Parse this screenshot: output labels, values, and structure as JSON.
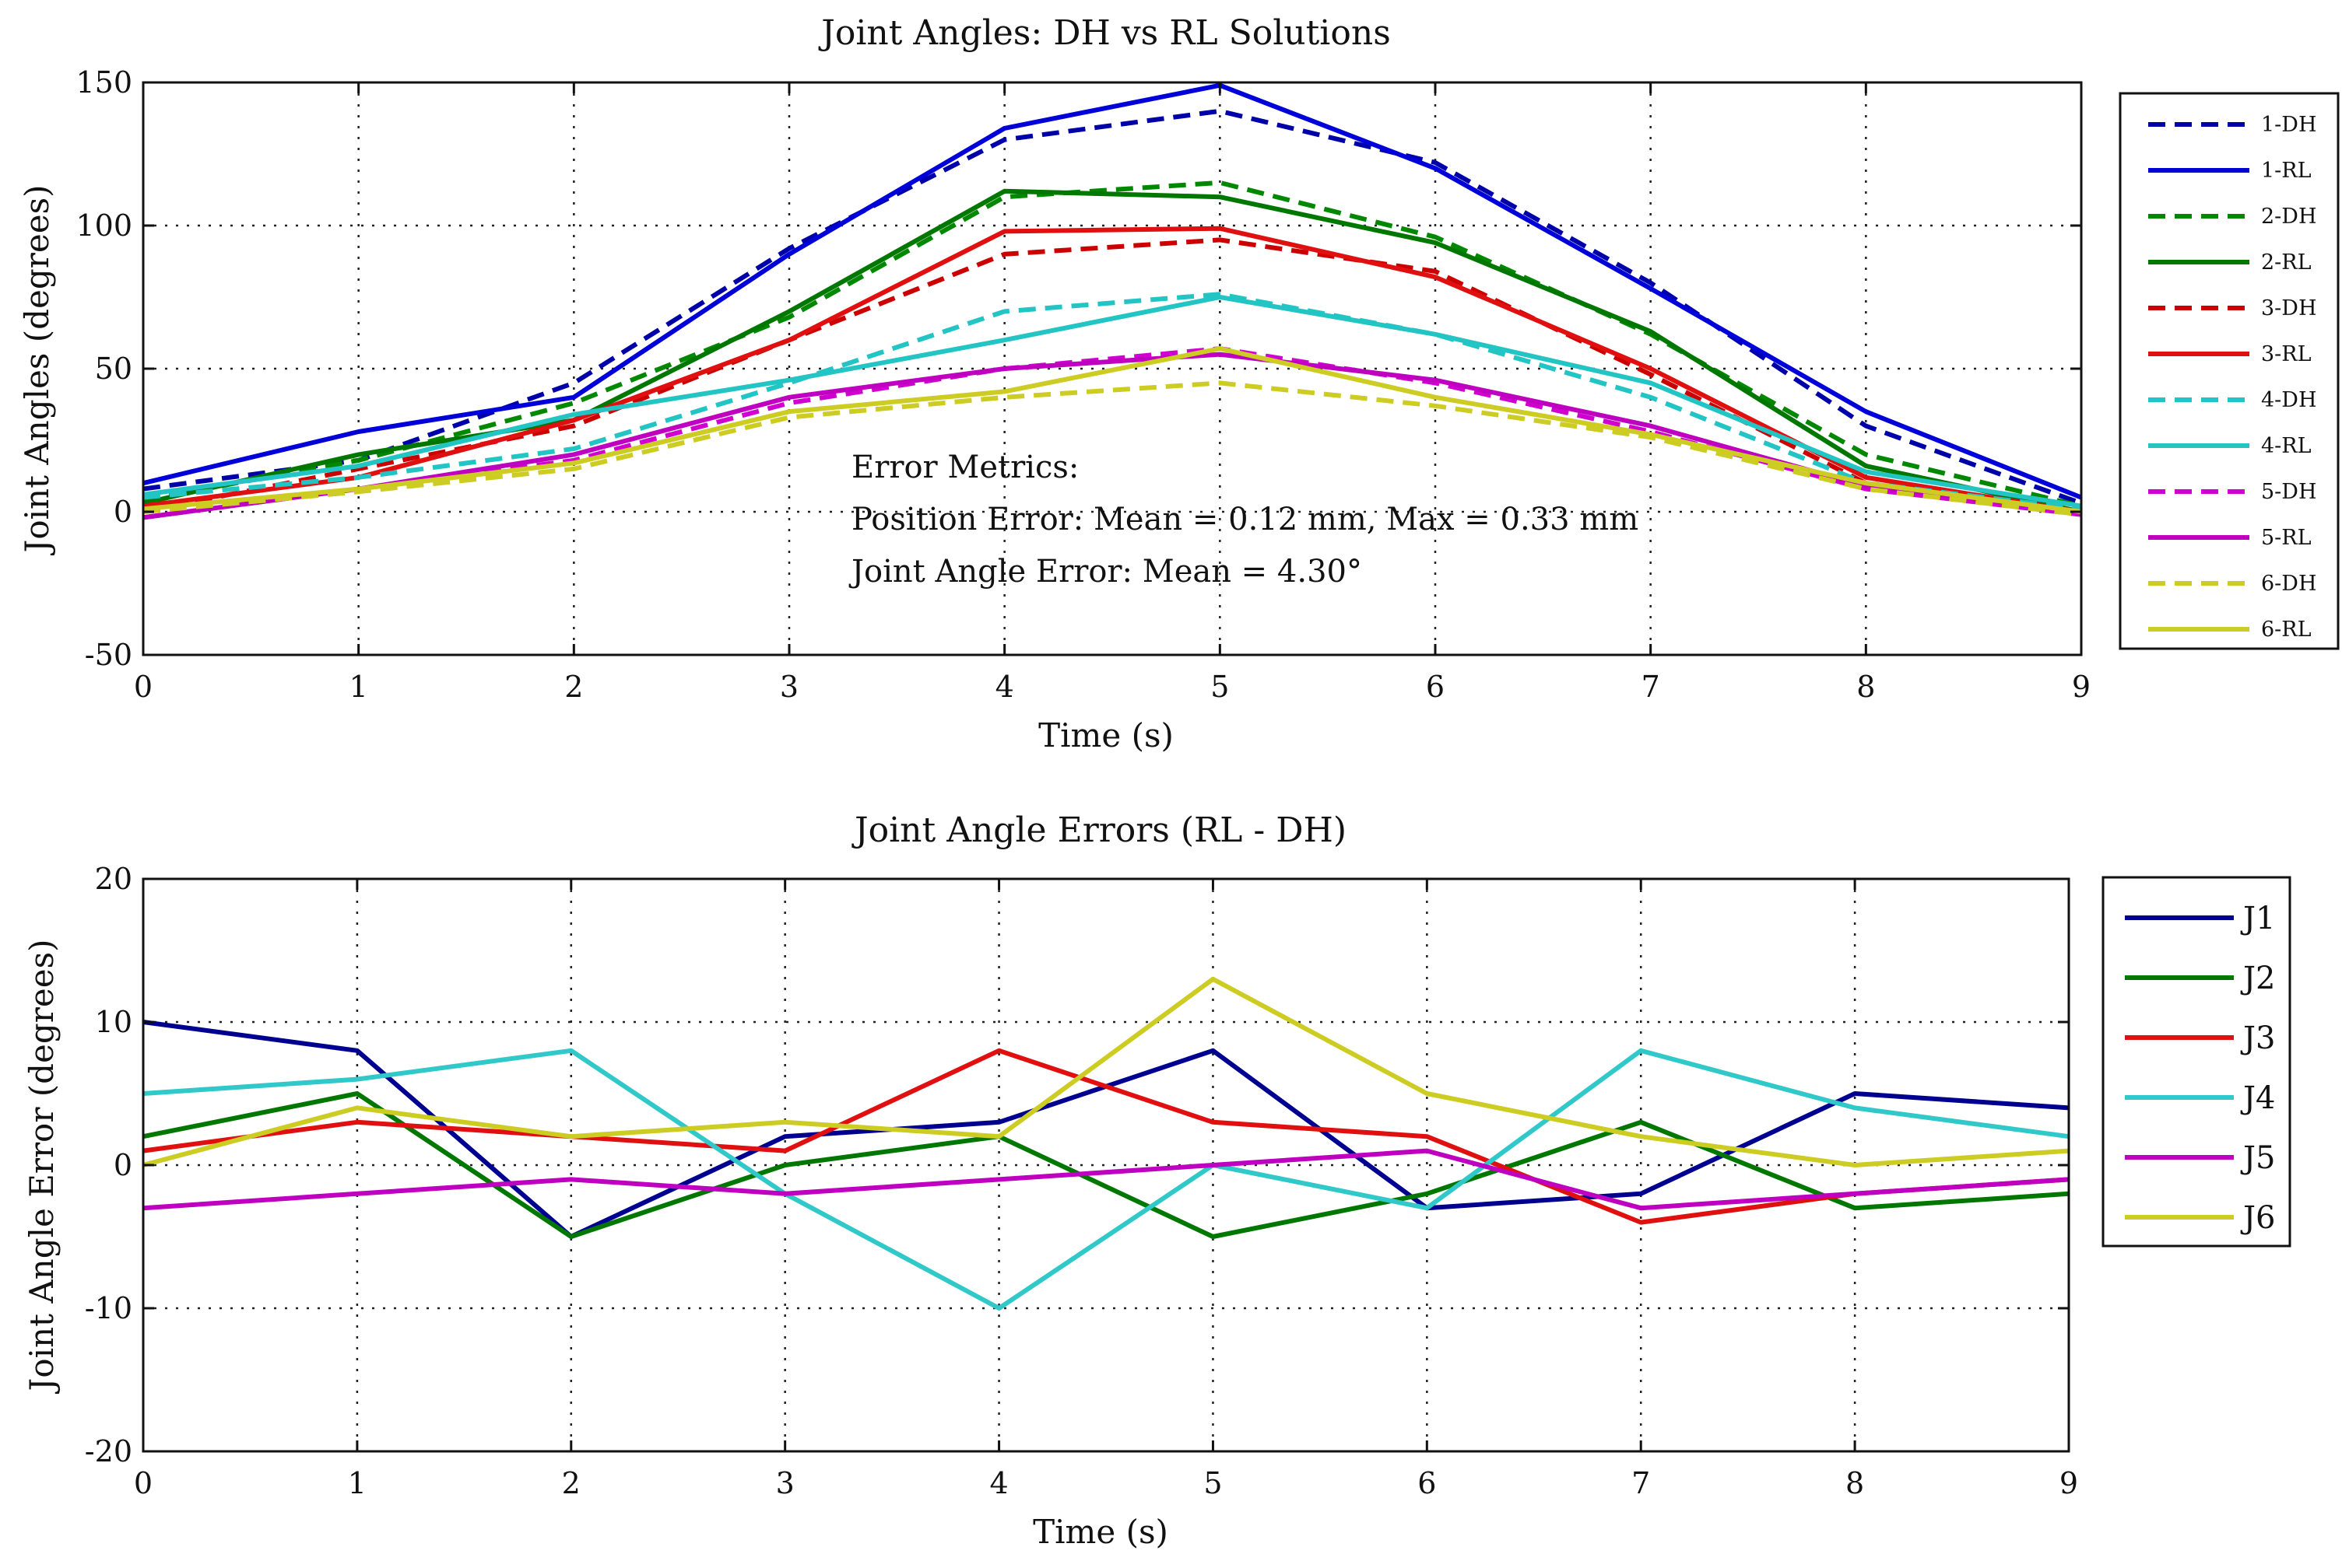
{
  "chart_data": [
    {
      "type": "line",
      "title": "Joint Angles: DH vs RL Solutions",
      "xlabel": "Time (s)",
      "ylabel": "Joint Angles (degrees)",
      "xlim": [
        0,
        9
      ],
      "ylim": [
        -50,
        150
      ],
      "xticks": [
        "0",
        "1",
        "2",
        "3",
        "4",
        "5",
        "6",
        "7",
        "8",
        "9"
      ],
      "yticks": [
        "150",
        "100",
        "50",
        "0",
        "-50"
      ],
      "grid": true,
      "legend_position": "outside-right",
      "x": [
        0,
        1,
        2,
        3,
        4,
        5,
        6,
        7,
        8,
        9
      ],
      "series": [
        {
          "name": "1-DH",
          "color": "#0000a8",
          "style": "dashed",
          "values": [
            8,
            18,
            45,
            92,
            130,
            140,
            122,
            80,
            30,
            3
          ]
        },
        {
          "name": "1-RL",
          "color": "#0000d8",
          "style": "solid",
          "values": [
            10,
            28,
            40,
            90,
            134,
            149,
            120,
            78,
            35,
            5
          ]
        },
        {
          "name": "2-DH",
          "color": "#008800",
          "style": "dashed",
          "values": [
            4,
            18,
            38,
            68,
            110,
            115,
            96,
            62,
            20,
            2
          ]
        },
        {
          "name": "2-RL",
          "color": "#007700",
          "style": "solid",
          "values": [
            3,
            20,
            32,
            70,
            112,
            110,
            94,
            63,
            16,
            0
          ]
        },
        {
          "name": "3-DH",
          "color": "#cc0000",
          "style": "dashed",
          "values": [
            0,
            15,
            30,
            60,
            90,
            95,
            84,
            48,
            10,
            0
          ]
        },
        {
          "name": "3-RL",
          "color": "#e01010",
          "style": "solid",
          "values": [
            2,
            12,
            32,
            60,
            98,
            99,
            82,
            50,
            12,
            0
          ]
        },
        {
          "name": "4-DH",
          "color": "#22c4c4",
          "style": "dashed",
          "values": [
            5,
            12,
            22,
            45,
            70,
            76,
            62,
            40,
            10,
            1
          ]
        },
        {
          "name": "4-RL",
          "color": "#22c4c4",
          "style": "solid",
          "values": [
            6,
            16,
            34,
            46,
            60,
            75,
            62,
            45,
            14,
            2
          ]
        },
        {
          "name": "5-DH",
          "color": "#d000d0",
          "style": "dashed",
          "values": [
            -2,
            8,
            18,
            38,
            50,
            57,
            45,
            28,
            8,
            -1
          ]
        },
        {
          "name": "5-RL",
          "color": "#c000c0",
          "style": "solid",
          "values": [
            -2,
            8,
            20,
            40,
            50,
            55,
            46,
            30,
            9,
            0
          ]
        },
        {
          "name": "6-DH",
          "color": "#cccc22",
          "style": "dashed",
          "values": [
            0,
            7,
            15,
            33,
            40,
            45,
            37,
            26,
            8,
            -1
          ]
        },
        {
          "name": "6-RL",
          "color": "#cccc22",
          "style": "solid",
          "values": [
            1,
            8,
            17,
            35,
            42,
            57,
            40,
            27,
            10,
            0
          ]
        }
      ],
      "annotation": {
        "heading": "Error Metrics:",
        "line1": "Position Error: Mean = 0.12 mm, Max = 0.33 mm",
        "line2": "Joint Angle Error: Mean = 4.30°"
      }
    },
    {
      "type": "line",
      "title": "Joint Angle Errors (RL - DH)",
      "xlabel": "Time (s)",
      "ylabel": "Joint Angle Error (degrees)",
      "xlim": [
        0,
        9
      ],
      "ylim": [
        -20,
        20
      ],
      "xticks": [
        "0",
        "1",
        "2",
        "3",
        "4",
        "5",
        "6",
        "7",
        "8",
        "9"
      ],
      "yticks": [
        "20",
        "10",
        "0",
        "-10",
        "-20"
      ],
      "grid": true,
      "legend_position": "outside-right",
      "x": [
        0,
        1,
        2,
        3,
        4,
        5,
        6,
        7,
        8,
        9
      ],
      "series": [
        {
          "name": "J1",
          "color": "#000090",
          "style": "solid",
          "values": [
            10,
            8,
            -5,
            2,
            3,
            8,
            -3,
            -2,
            5,
            4
          ]
        },
        {
          "name": "J2",
          "color": "#007700",
          "style": "solid",
          "values": [
            2,
            5,
            -5,
            0,
            2,
            -5,
            -2,
            3,
            -3,
            -2
          ]
        },
        {
          "name": "J3",
          "color": "#e01010",
          "style": "solid",
          "values": [
            1,
            3,
            2,
            1,
            8,
            3,
            2,
            -4,
            -2,
            -1
          ]
        },
        {
          "name": "J4",
          "color": "#30c8c8",
          "style": "solid",
          "values": [
            5,
            6,
            8,
            -2,
            -10,
            0,
            -3,
            8,
            4,
            2
          ]
        },
        {
          "name": "J5",
          "color": "#c000c0",
          "style": "solid",
          "values": [
            -3,
            -2,
            -1,
            -2,
            -1,
            0,
            1,
            -3,
            -2,
            -1
          ]
        },
        {
          "name": "J6",
          "color": "#cccc22",
          "style": "solid",
          "values": [
            0,
            4,
            2,
            3,
            2,
            13,
            5,
            2,
            0,
            1
          ]
        }
      ]
    }
  ]
}
